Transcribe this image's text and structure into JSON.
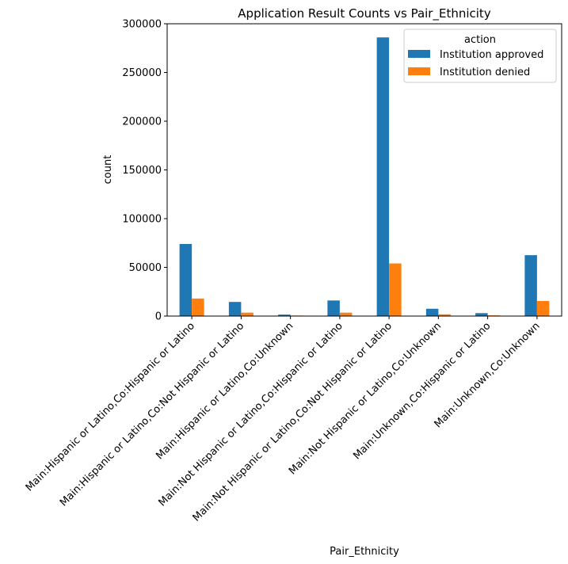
{
  "chart_data": {
    "type": "bar",
    "title": "Application Result Counts vs Pair_Ethnicity",
    "xlabel": "Pair_Ethnicity",
    "ylabel": "count",
    "ylim": [
      0,
      300000
    ],
    "yticks": [
      0,
      50000,
      100000,
      150000,
      200000,
      250000,
      300000
    ],
    "categories": [
      "Main:Hispanic or Latino,Co:Hispanic or Latino",
      "Main:Hispanic or Latino,Co:Not Hispanic or Latino",
      "Main:Hispanic or Latino,Co:Unknown",
      "Main:Not Hispanic or Latino,Co:Hispanic or Latino",
      "Main:Not Hispanic or Latino,Co:Not Hispanic or Latino",
      "Main:Not Hispanic or Latino,Co:Unknown",
      "Main:Unknown,Co:Hispanic or Latino",
      "Main:Unknown,Co:Unknown"
    ],
    "series": [
      {
        "name": "Institution approved",
        "color": "#1f77b4",
        "values": [
          74000,
          14500,
          1500,
          16000,
          286000,
          7500,
          3000,
          62500
        ]
      },
      {
        "name": "Institution denied",
        "color": "#ff7f0e",
        "values": [
          18000,
          3500,
          500,
          3500,
          54000,
          1800,
          700,
          15500
        ]
      }
    ],
    "legend": {
      "title": "action",
      "placement": "top-right"
    },
    "grid": false
  }
}
